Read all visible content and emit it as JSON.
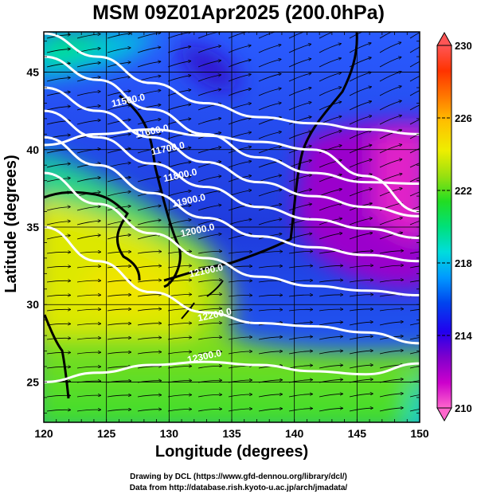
{
  "title": "MSM 09Z01Apr2025 (200.0hPa)",
  "chart_data": {
    "type": "heatmap",
    "title": "MSM 09Z01Apr2025 (200.0hPa)",
    "xlabel": "Longitude (degrees)",
    "ylabel": "Latitude (degrees)",
    "xlim": [
      120,
      150
    ],
    "ylim": [
      22.4,
      47.6
    ],
    "xticks": [
      "120",
      "125",
      "130",
      "135",
      "140",
      "145",
      "150"
    ],
    "yticks": [
      "25",
      "30",
      "35",
      "40",
      "45"
    ],
    "grid": true,
    "colorbar": {
      "range": [
        210,
        230
      ],
      "labels": [
        "210",
        "214",
        "218",
        "222",
        "226",
        "230"
      ],
      "colors": [
        "#ff66cc",
        "#cc00cc",
        "#7f00cc",
        "#2200ee",
        "#0044ee",
        "#0099ff",
        "#00dddd",
        "#00e07a",
        "#22dd22",
        "#99e010",
        "#eeee00",
        "#ffc000",
        "#ff7700",
        "#ff3300",
        "#ff5555"
      ]
    },
    "contour_labels": [
      "11500.0",
      "11600.0",
      "11700.0",
      "11800.0",
      "11900.0",
      "12000.0",
      "12100.0",
      "12200.0",
      "12300.0"
    ],
    "contours": [
      {
        "label": "11500.0",
        "lat": [
          47.5,
          46.0,
          44.3,
          43.0,
          42.1,
          41.7,
          41.3,
          41.0
        ]
      },
      {
        "label": "11600.0",
        "lat": [
          40.3,
          41.0,
          41.3,
          40.9,
          40.5,
          40.0,
          38.3,
          36.0
        ]
      },
      {
        "label": "11700.0",
        "lat": [
          46.0,
          44.5,
          42.6,
          41.0,
          39.5,
          38.5,
          37.9,
          37.8
        ]
      },
      {
        "label": "11800.0",
        "lat": [
          44.0,
          42.5,
          40.8,
          39.2,
          37.9,
          37.0,
          36.3,
          35.7
        ]
      },
      {
        "label": "11900.0",
        "lat": [
          42.5,
          40.8,
          39.1,
          37.6,
          36.3,
          35.5,
          34.9,
          34.3
        ]
      },
      {
        "label": "12000.0",
        "lat": [
          40.8,
          39.0,
          37.2,
          35.6,
          34.4,
          33.7,
          33.2,
          32.8
        ]
      },
      {
        "label": "12100.0",
        "lat": [
          38.5,
          36.5,
          34.6,
          33.0,
          31.8,
          31.2,
          30.9,
          30.6
        ]
      },
      {
        "label": "12200.0",
        "lat": [
          35.0,
          32.8,
          30.8,
          29.5,
          28.8,
          28.6,
          28.2,
          27.5
        ]
      },
      {
        "label": "12300.0",
        "lat": [
          25.0,
          25.6,
          26.1,
          26.3,
          26.1,
          25.7,
          25.5,
          26.2
        ]
      }
    ]
  },
  "credit_line1": "Drawing by DCL (https://www.gfd-dennou.org/library/dcl/)",
  "credit_line2": "Data from http://database.rish.kyoto-u.ac.jp/arch/jmadata/"
}
